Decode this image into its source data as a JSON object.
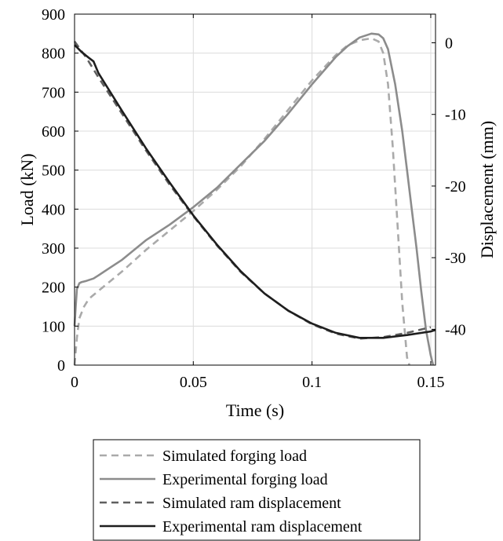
{
  "chart_data": {
    "type": "line",
    "title": "",
    "xlabel": "Time (s)",
    "ylabel_left": "Load (kN)",
    "ylabel_right": "Displacement (mm)",
    "xlim": [
      0,
      0.152
    ],
    "ylim_left": [
      0,
      900
    ],
    "ylim_right": [
      -45,
      4
    ],
    "x_ticks": [
      0,
      0.05,
      0.1,
      0.15
    ],
    "x_tick_labels": [
      "0",
      "0.05",
      "0.1",
      "0.15"
    ],
    "y_left_ticks": [
      0,
      100,
      200,
      300,
      400,
      500,
      600,
      700,
      800,
      900
    ],
    "y_left_tick_labels": [
      "0",
      "100",
      "200",
      "300",
      "400",
      "500",
      "600",
      "700",
      "800",
      "900"
    ],
    "y_right_ticks": [
      0,
      -10,
      -20,
      -30,
      -40
    ],
    "y_right_tick_labels": [
      "0",
      "-10",
      "-20",
      "-30",
      "-40"
    ],
    "grid": true,
    "legend_position": "below",
    "series": [
      {
        "name": "Simulated forging load",
        "axis": "left",
        "color": "#aaaaaa",
        "dash": "dashed",
        "x": [
          0,
          0.001,
          0.002,
          0.004,
          0.006,
          0.008,
          0.01,
          0.015,
          0.02,
          0.03,
          0.04,
          0.05,
          0.06,
          0.07,
          0.08,
          0.09,
          0.1,
          0.11,
          0.115,
          0.12,
          0.125,
          0.128,
          0.13,
          0.132,
          0.134,
          0.136,
          0.138,
          0.14,
          0.141
        ],
        "values": [
          0,
          70,
          120,
          150,
          170,
          180,
          190,
          215,
          240,
          295,
          345,
          395,
          450,
          510,
          580,
          655,
          730,
          795,
          820,
          833,
          838,
          830,
          800,
          720,
          560,
          360,
          160,
          20,
          0
        ]
      },
      {
        "name": "Experimental forging load",
        "axis": "left",
        "color": "#8c8c8c",
        "dash": "solid",
        "x": [
          0,
          0.0005,
          0.001,
          0.002,
          0.003,
          0.005,
          0.008,
          0.01,
          0.015,
          0.02,
          0.03,
          0.04,
          0.05,
          0.06,
          0.07,
          0.08,
          0.09,
          0.1,
          0.11,
          0.115,
          0.12,
          0.125,
          0.128,
          0.13,
          0.132,
          0.135,
          0.138,
          0.14,
          0.142,
          0.144,
          0.146,
          0.148,
          0.15,
          0.151
        ],
        "values": [
          100,
          150,
          195,
          210,
          213,
          216,
          222,
          230,
          250,
          270,
          320,
          360,
          405,
          455,
          515,
          575,
          645,
          720,
          790,
          818,
          840,
          850,
          848,
          838,
          810,
          720,
          600,
          500,
          400,
          300,
          190,
          90,
          25,
          0
        ]
      },
      {
        "name": "Simulated ram displacement",
        "axis": "right",
        "color": "#5f5f5f",
        "dash": "dashed",
        "x": [
          0,
          0.005,
          0.01,
          0.02,
          0.03,
          0.04,
          0.05,
          0.06,
          0.07,
          0.08,
          0.09,
          0.1,
          0.11,
          0.12,
          0.13,
          0.14,
          0.15
        ],
        "values": [
          0.2,
          -2.1,
          -4.8,
          -9.9,
          -15.0,
          -19.8,
          -24.2,
          -28.3,
          -32.0,
          -35.0,
          -37.4,
          -39.3,
          -40.6,
          -41.3,
          -41.1,
          -40.5,
          -39.7
        ]
      },
      {
        "name": "Experimental ram displacement",
        "axis": "right",
        "color": "#1e1e1e",
        "dash": "solid",
        "x": [
          0,
          0.003,
          0.006,
          0.008,
          0.01,
          0.02,
          0.03,
          0.04,
          0.05,
          0.06,
          0.07,
          0.08,
          0.09,
          0.1,
          0.11,
          0.12,
          0.13,
          0.14,
          0.15,
          0.152
        ],
        "values": [
          -0.3,
          -1.3,
          -2.1,
          -2.6,
          -4.2,
          -9.5,
          -14.7,
          -19.5,
          -24.1,
          -28.2,
          -31.9,
          -35.0,
          -37.4,
          -39.2,
          -40.5,
          -41.2,
          -41.2,
          -40.8,
          -40.3,
          -40.1
        ]
      }
    ]
  }
}
